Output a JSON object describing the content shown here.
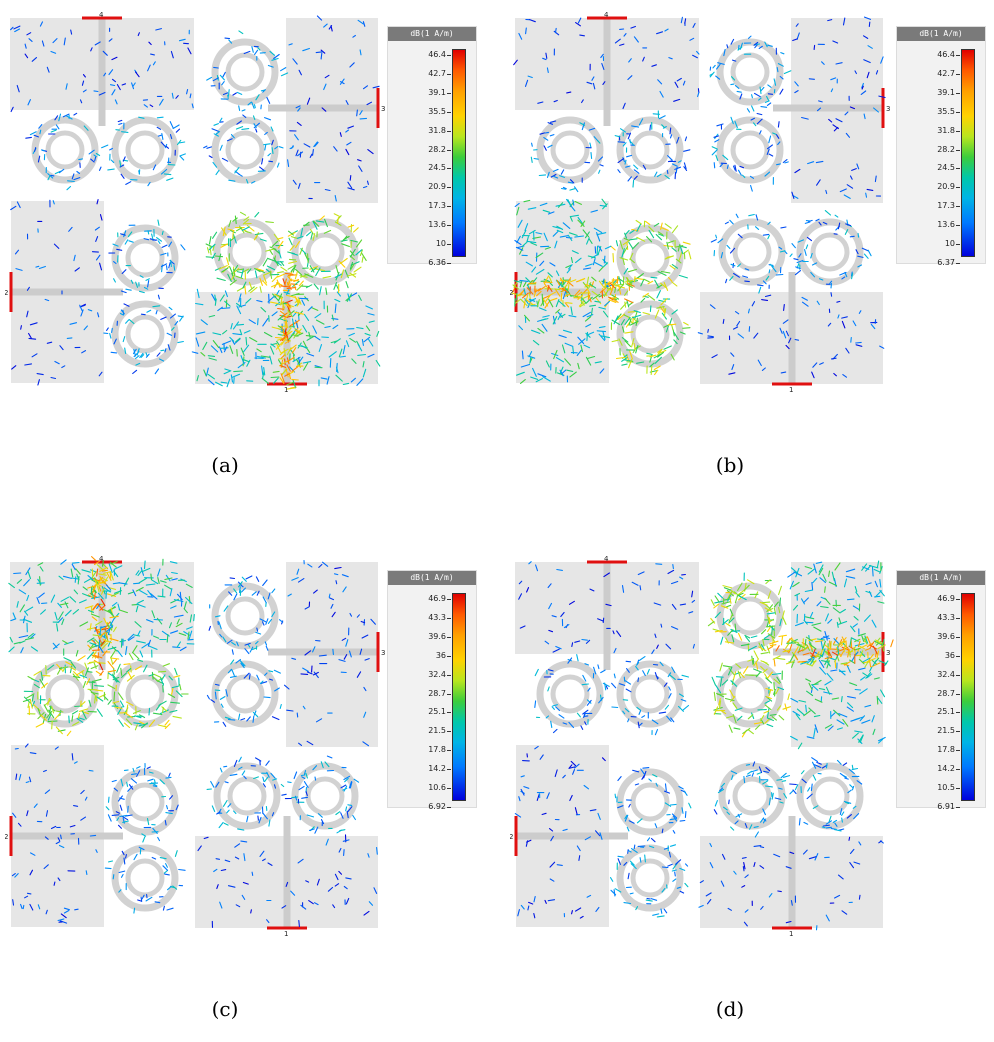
{
  "figure": {
    "panels": [
      {
        "caption": "(a)",
        "excited_port": "1",
        "legend": {
          "unit": "dB(1 A/m)",
          "ticks": [
            "46.4",
            "42.7",
            "39.1",
            "35.5",
            "31.8",
            "28.2",
            "24.5",
            "20.9",
            "17.3",
            "13.6",
            "10",
            "6.36"
          ]
        }
      },
      {
        "caption": "(b)",
        "excited_port": "2",
        "legend": {
          "unit": "dB(1 A/m)",
          "ticks": [
            "46.4",
            "42.7",
            "39.1",
            "35.5",
            "31.8",
            "28.2",
            "24.5",
            "20.9",
            "17.3",
            "13.6",
            "10",
            "6.37"
          ]
        }
      },
      {
        "caption": "(c)",
        "excited_port": "4",
        "legend": {
          "unit": "dB(1 A/m)",
          "ticks": [
            "46.9",
            "43.3",
            "39.6",
            "36",
            "32.4",
            "28.7",
            "25.1",
            "21.5",
            "17.8",
            "14.2",
            "10.6",
            "6.92"
          ]
        }
      },
      {
        "caption": "(d)",
        "excited_port": "3",
        "legend": {
          "unit": "dB(1 A/m)",
          "ticks": [
            "46.9",
            "43.3",
            "39.6",
            "36",
            "32.4",
            "28.7",
            "25.1",
            "21.5",
            "17.8",
            "14.2",
            "10.5",
            "6.91"
          ]
        }
      }
    ],
    "port_labels": [
      "1",
      "2",
      "3",
      "4"
    ],
    "colors": {
      "substrate": "#e6e6e6",
      "ring": "#d2d2d2",
      "port": "#e01010",
      "scale_high": "#e00000",
      "scale_low": "#0000dc"
    }
  }
}
